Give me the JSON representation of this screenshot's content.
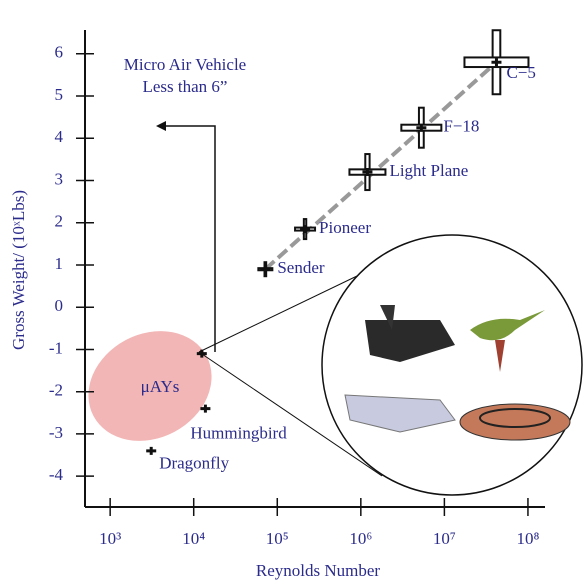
{
  "chart_data": {
    "type": "scatter",
    "x_label": "Reynolds Number",
    "y_label": "Gross Weight/ (10ˣLbs)",
    "x": [
      72000,
      215000,
      1200000,
      5300000,
      42000000,
      3100,
      13800,
      12500
    ],
    "values": [
      0.9,
      1.85,
      3.2,
      4.25,
      5.8,
      -3.4,
      -2.4,
      -1.1
    ],
    "point_labels": [
      "Sender",
      "Pioneer",
      "Light Plane",
      "F−18",
      "C−5",
      "Dragonfly",
      "Hummingbird",
      null
    ],
    "annotation": [
      "Micro Air Vehicle",
      "Less than 6”"
    ],
    "region_label": "μAYs",
    "x_log": true,
    "xlim": [
      500,
      160000000
    ],
    "ylim": [
      -4.73,
      6.8
    ],
    "xticks": [
      {
        "value": 1000,
        "label": "10³"
      },
      {
        "value": 10000,
        "label": "10⁴"
      },
      {
        "value": 100000,
        "label": "10⁵"
      },
      {
        "value": 1000000,
        "label": "10⁶"
      },
      {
        "value": 10000000,
        "label": "10⁷"
      },
      {
        "value": 100000000,
        "label": "10⁸"
      }
    ],
    "yticks": [
      -4,
      -3,
      -2,
      -1,
      0,
      1,
      2,
      3,
      4,
      5,
      6
    ],
    "color": "#111111",
    "trend_color": "#999999"
  }
}
